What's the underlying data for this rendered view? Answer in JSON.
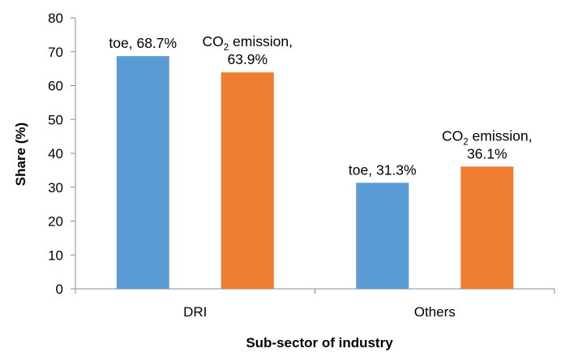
{
  "chart_data": {
    "type": "bar",
    "title": "",
    "xlabel": "Sub-sector of industry",
    "ylabel": "Share (%)",
    "ylim": [
      0,
      80
    ],
    "ytick_step": 10,
    "yticks": [
      "0",
      "10",
      "20",
      "30",
      "40",
      "50",
      "60",
      "70",
      "80"
    ],
    "categories": [
      "DRI",
      "Others"
    ],
    "series": [
      {
        "values": [
          68.7,
          31.3
        ],
        "color": "#5B9BD5",
        "labels": [
          {
            "text": "toe, 68.7%"
          },
          {
            "text": "toe, 31.3%"
          }
        ]
      },
      {
        "values": [
          63.9,
          36.1
        ],
        "color": "#ED7D31",
        "labels": [
          {
            "prefix": "CO",
            "sub": "2",
            "suffix": " emission,",
            "line2": "63.9%"
          },
          {
            "prefix": "CO",
            "sub": "2",
            "suffix": " emission,",
            "line2": "36.1%"
          }
        ]
      }
    ],
    "grid": false,
    "legend": "none"
  }
}
